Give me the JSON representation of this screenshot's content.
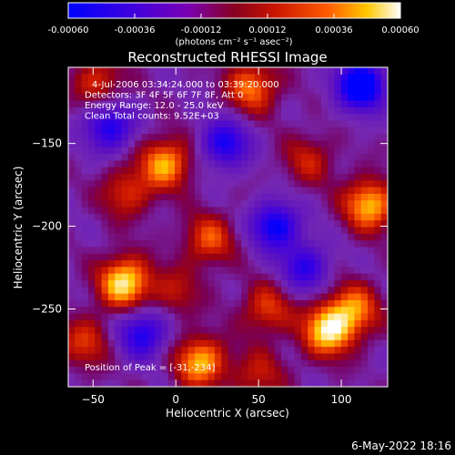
{
  "chart_data": {
    "type": "heatmap",
    "title": "Reconstructed RHESSI Image",
    "xlabel": "Heliocentric X (arcsec)",
    "ylabel": "Heliocentric Y (arcsec)",
    "xlim": [
      -65,
      128
    ],
    "ylim": [
      -297,
      -104
    ],
    "x_ticks": [
      -50,
      0,
      50,
      100
    ],
    "y_ticks": [
      -150,
      -200,
      -250
    ],
    "colorbar": {
      "label": "(photons cm⁻² s⁻¹ asec⁻²)",
      "range": [
        -0.0006,
        0.0006
      ],
      "ticks": [
        "-0.00060",
        "-0.00036",
        "-0.00012",
        "0.00012",
        "0.00036",
        "0.00060"
      ],
      "colors": [
        "#0000ff",
        "#5a00c8",
        "#7a2ccc",
        "#7a00a0",
        "#a01010",
        "#d01e00",
        "#ff5a00",
        "#ffc800",
        "#ffffff"
      ]
    },
    "annotations": [
      "4-Jul-2006 03:34:24.000 to 03:39:20.000",
      "Detectors: 3F 4F 5F 6F 7F 8F, Att 0",
      "Energy Range: 12.0 - 25.0 keV",
      "Clean     Total counts: 9.52E+03"
    ],
    "peak_label": "Position of Peak = [-31,-234]",
    "peak": [
      -31,
      -234
    ],
    "timestamp": "6-May-2022 18:16",
    "sources": [
      {
        "x": -31,
        "y": -234,
        "value": 0.0006
      },
      {
        "x": 92,
        "y": -263,
        "value": 0.00058
      },
      {
        "x": 15,
        "y": -282,
        "value": 0.0005
      },
      {
        "x": -6,
        "y": -162,
        "value": 0.00048
      },
      {
        "x": 46,
        "y": -116,
        "value": 0.00042
      },
      {
        "x": 117,
        "y": -187,
        "value": 0.00052
      },
      {
        "x": 108,
        "y": -250,
        "value": 0.0004
      },
      {
        "x": -47,
        "y": -113,
        "value": 0.0003
      },
      {
        "x": 20,
        "y": -208,
        "value": 0.00035
      },
      {
        "x": 55,
        "y": -250,
        "value": 0.00032
      },
      {
        "x": -30,
        "y": -180,
        "value": 0.0003
      },
      {
        "x": 80,
        "y": -160,
        "value": 0.00025
      },
      {
        "x": -55,
        "y": -270,
        "value": 0.0003
      },
      {
        "x": 50,
        "y": -290,
        "value": 0.00025
      },
      {
        "x": 0,
        "y": -240,
        "value": 0.00022
      }
    ],
    "negatives": [
      {
        "x": 112,
        "y": -115,
        "value": -0.00022
      },
      {
        "x": -40,
        "y": -140,
        "value": -0.00014
      },
      {
        "x": 30,
        "y": -150,
        "value": -0.00014
      },
      {
        "x": 60,
        "y": -200,
        "value": -0.00016
      },
      {
        "x": -20,
        "y": -265,
        "value": -0.00014
      },
      {
        "x": 78,
        "y": -225,
        "value": -0.00012
      }
    ]
  }
}
